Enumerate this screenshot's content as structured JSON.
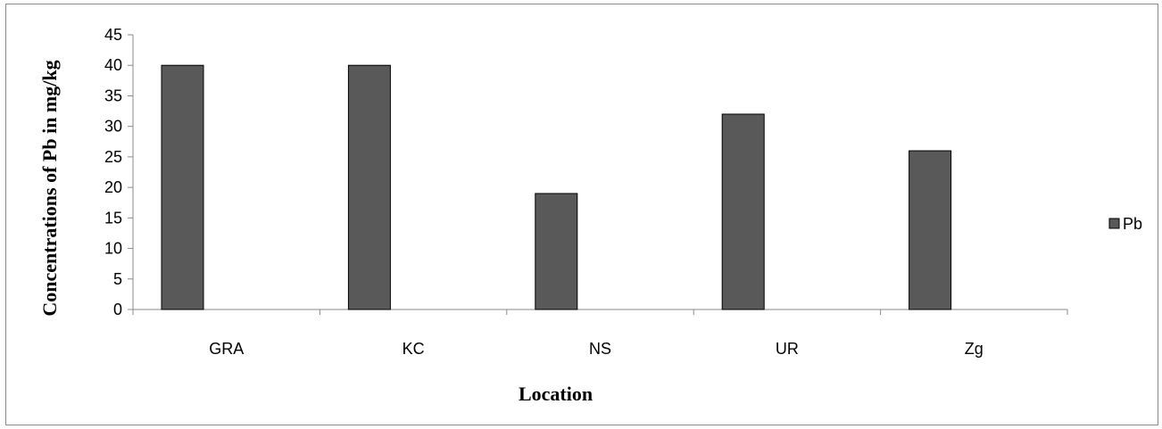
{
  "chart_data": {
    "type": "bar",
    "categories": [
      "GRA",
      "KC",
      "NS",
      "UR",
      "Zg"
    ],
    "series": [
      {
        "name": "Pb",
        "values": [
          40,
          40,
          19,
          32,
          26
        ],
        "color": "#595959"
      }
    ],
    "xlabel": "Location",
    "ylabel": "Concentrations of Pb in mg/kg",
    "ylim": [
      0,
      45
    ],
    "yticks": [
      0,
      5,
      10,
      15,
      20,
      25,
      30,
      35,
      40,
      45
    ],
    "grid": false,
    "legend_position": "right",
    "colors": {
      "bar_fill": "#595959",
      "bar_stroke": "#000000",
      "axis": "#8a8a8a",
      "frame": "#8a8a8a"
    }
  }
}
